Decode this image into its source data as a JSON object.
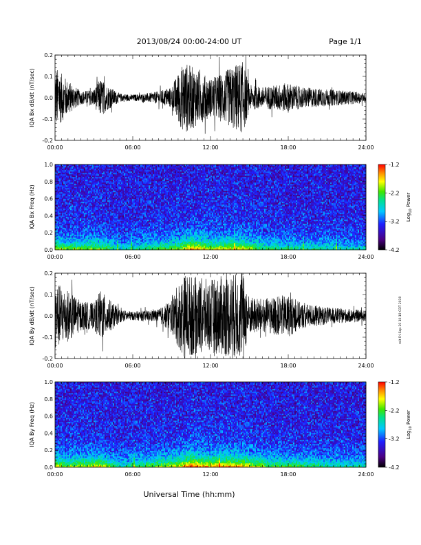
{
  "header": {
    "date_range": "2013/08/24  00:00-24:00 UT",
    "page": "Page 1/1"
  },
  "side_stamp": "mit Fri Sep 20 10:19 CDT 2019",
  "colors": {
    "trace": "#000000",
    "spectrogram_scale": [
      "#000000",
      "#4b0082",
      "#1e1eff",
      "#00c8ff",
      "#00e090",
      "#3ee600",
      "#ffff00",
      "#ff8c00",
      "#ff0000"
    ]
  },
  "chart_data": [
    {
      "type": "line",
      "title": "",
      "ylabel": "IQA Bx dB/dt (nT/sec)",
      "xlabel": "",
      "xlim": [
        "00:00",
        "24:00"
      ],
      "ylim": [
        -0.2,
        0.2
      ],
      "x_ticks": [
        "00:00",
        "06:00",
        "12:00",
        "18:00",
        "24:00"
      ],
      "y_ticks": [
        "-0.2",
        "-0.1",
        "0.0",
        "0.1",
        "0.2"
      ],
      "series_description_hours": [
        0,
        1,
        2,
        3,
        3.5,
        4,
        5,
        6,
        7,
        8,
        9,
        9.5,
        10,
        11,
        12,
        13,
        14,
        14.5,
        15,
        16,
        17,
        18,
        19,
        20,
        21,
        22,
        23,
        24
      ],
      "amplitude_envelope": [
        0.15,
        0.08,
        0.03,
        0.04,
        0.09,
        0.06,
        0.02,
        0.015,
        0.02,
        0.03,
        0.05,
        0.12,
        0.17,
        0.13,
        0.09,
        0.12,
        0.16,
        0.17,
        0.06,
        0.05,
        0.06,
        0.07,
        0.05,
        0.045,
        0.04,
        0.035,
        0.03,
        0.02
      ]
    },
    {
      "type": "heatmap",
      "title": "",
      "ylabel": "IQA Bx Freq (Hz)",
      "xlabel": "",
      "xlim": [
        "00:00",
        "24:00"
      ],
      "ylim": [
        0.0,
        1.0
      ],
      "x_ticks": [
        "00:00",
        "06:00",
        "12:00",
        "18:00",
        "24:00"
      ],
      "y_ticks": [
        "0.0",
        "0.2",
        "0.4",
        "0.6",
        "0.8",
        "1.0"
      ],
      "colorbar": {
        "label": "Log10 Power",
        "label_main": "Log",
        "label_sub": "10",
        "label_tail": " Power",
        "range": [
          -4.2,
          -1.2
        ],
        "ticks": [
          "-1.2",
          "-2.2",
          "-3.2",
          "-4.2"
        ]
      },
      "activity_hours": [
        0,
        1,
        3.5,
        5,
        9.5,
        10.5,
        12,
        13.5,
        14.5,
        16.5,
        18,
        20,
        24
      ],
      "activity_level": [
        0.55,
        0.45,
        0.5,
        0.25,
        0.5,
        0.75,
        0.55,
        0.6,
        0.6,
        0.35,
        0.35,
        0.3,
        0.25
      ]
    },
    {
      "type": "line",
      "title": "",
      "ylabel": "IQA By dB/dt (nT/sec)",
      "xlabel": "",
      "xlim": [
        "00:00",
        "24:00"
      ],
      "ylim": [
        -0.2,
        0.2
      ],
      "x_ticks": [
        "00:00",
        "06:00",
        "12:00",
        "18:00",
        "24:00"
      ],
      "y_ticks": [
        "-0.2",
        "-0.1",
        "0.0",
        "0.1",
        "0.2"
      ],
      "series_description_hours": [
        0,
        1,
        2,
        3,
        3.5,
        4,
        5,
        6,
        7,
        8,
        9,
        9.5,
        10,
        11,
        12,
        13,
        14,
        14.5,
        15,
        16,
        17,
        18,
        19,
        20,
        21,
        22,
        23,
        24
      ],
      "amplitude_envelope": [
        0.16,
        0.12,
        0.07,
        0.06,
        0.12,
        0.09,
        0.03,
        0.02,
        0.025,
        0.03,
        0.08,
        0.15,
        0.2,
        0.18,
        0.17,
        0.19,
        0.2,
        0.2,
        0.09,
        0.08,
        0.09,
        0.1,
        0.06,
        0.05,
        0.04,
        0.035,
        0.03,
        0.025
      ]
    },
    {
      "type": "heatmap",
      "title": "",
      "ylabel": "IQA By Freq (Hz)",
      "xlabel": "Universal Time (hh:mm)",
      "xlim": [
        "00:00",
        "24:00"
      ],
      "ylim": [
        0.0,
        1.0
      ],
      "x_ticks": [
        "00:00",
        "06:00",
        "12:00",
        "18:00",
        "24:00"
      ],
      "y_ticks": [
        "0.0",
        "0.2",
        "0.4",
        "0.6",
        "0.8",
        "1.0"
      ],
      "colorbar": {
        "label": "Log10 Power",
        "label_main": "Log",
        "label_sub": "10",
        "label_tail": " Power",
        "range": [
          -4.2,
          -1.2
        ],
        "ticks": [
          "-1.2",
          "-2.2",
          "-3.2",
          "-4.2"
        ]
      },
      "activity_hours": [
        0,
        1,
        3.5,
        5,
        9.5,
        10.5,
        12,
        13.5,
        14.5,
        16.5,
        18,
        20,
        24
      ],
      "activity_level": [
        0.6,
        0.5,
        0.6,
        0.3,
        0.6,
        0.85,
        0.7,
        0.75,
        0.7,
        0.45,
        0.45,
        0.35,
        0.3
      ]
    }
  ]
}
